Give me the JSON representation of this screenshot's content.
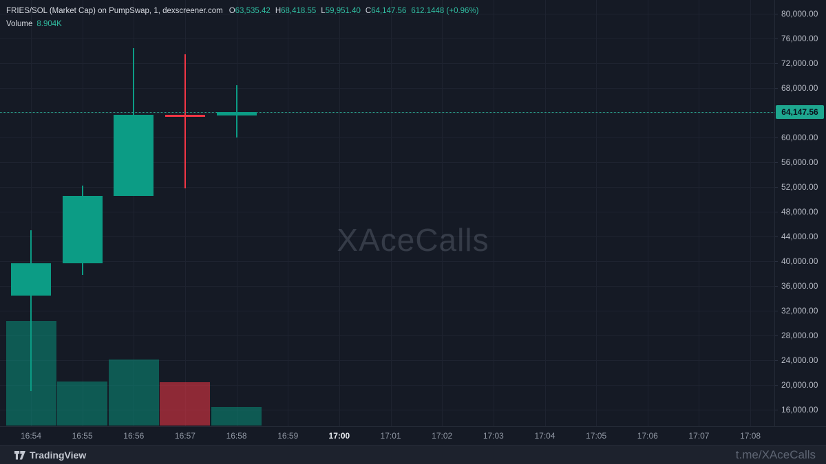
{
  "legend": {
    "title": "FRIES/SOL (Market Cap) on PumpSwap, 1, dexscreener.com",
    "ohlc": [
      {
        "label": "O",
        "value": "63,535.42"
      },
      {
        "label": "H",
        "value": "68,418.55"
      },
      {
        "label": "L",
        "value": "59,951.40"
      },
      {
        "label": "C",
        "value": "64,147.56"
      }
    ],
    "change": "612.1448 (+0.96%)",
    "volume_label": "Volume",
    "volume_value": "8.904K"
  },
  "watermark": "XAceCalls",
  "footer": {
    "logo_text": "TradingView",
    "credit": "t.me/XAceCalls"
  },
  "price_scale": {
    "current_price_label": "64,147.56"
  },
  "colors": {
    "background": "#151a25",
    "grid": "#1e2330",
    "up": "#0c9c85",
    "down": "#f23645",
    "volume_up": "rgba(8,153,129,0.50)",
    "volume_down": "rgba(242,54,69,0.55)",
    "badge_bg": "#1ea78f",
    "accent_teal": "#31bda1"
  },
  "chart_data": {
    "type": "candlestick",
    "title": "FRIES/SOL (Market Cap) on PumpSwap, 1, dexscreener.com",
    "interval_minutes": 1,
    "legend_position": "top-left",
    "grid": true,
    "current_price": 64147.56,
    "last_volume_k": 8.904,
    "ylim": [
      16000,
      80000
    ],
    "y_ticks": [
      {
        "value": 80000,
        "label": "80,000.00"
      },
      {
        "value": 76000,
        "label": "76,000.00"
      },
      {
        "value": 72000,
        "label": "72,000.00"
      },
      {
        "value": 68000,
        "label": "68,000.00"
      },
      {
        "value": 64000,
        "label": ""
      },
      {
        "value": 60000,
        "label": "60,000.00"
      },
      {
        "value": 56000,
        "label": "56,000.00"
      },
      {
        "value": 52000,
        "label": "52,000.00"
      },
      {
        "value": 48000,
        "label": "48,000.00"
      },
      {
        "value": 44000,
        "label": "44,000.00"
      },
      {
        "value": 40000,
        "label": "40,000.00"
      },
      {
        "value": 36000,
        "label": "36,000.00"
      },
      {
        "value": 32000,
        "label": "32,000.00"
      },
      {
        "value": 28000,
        "label": "28,000.00"
      },
      {
        "value": 24000,
        "label": "24,000.00"
      },
      {
        "value": 20000,
        "label": "20,000.00"
      },
      {
        "value": 16000,
        "label": "16,000.00"
      }
    ],
    "x_axis": {
      "labels": [
        "16:54",
        "16:55",
        "16:56",
        "16:57",
        "16:58",
        "16:59",
        "17:00",
        "17:01",
        "17:02",
        "17:03",
        "17:04",
        "17:05",
        "17:06",
        "17:07",
        "17:08"
      ],
      "bold_label": "17:00"
    },
    "series": [
      {
        "time": "16:54",
        "open": 34400,
        "high": 45000,
        "low": 19000,
        "close": 39700,
        "direction": "up",
        "volume_k": 50.1
      },
      {
        "time": "16:55",
        "open": 39700,
        "high": 52200,
        "low": 37800,
        "close": 50600,
        "direction": "up",
        "volume_k": 21.1
      },
      {
        "time": "16:56",
        "open": 50600,
        "high": 74400,
        "low": 50600,
        "close": 63700,
        "direction": "up",
        "volume_k": 31.7
      },
      {
        "time": "16:57",
        "open": 63700,
        "high": 73500,
        "low": 51800,
        "close": 63350,
        "direction": "down",
        "volume_k": 20.8
      },
      {
        "time": "16:58",
        "open": 63535.42,
        "high": 68418.55,
        "low": 59951.4,
        "close": 64147.56,
        "direction": "up",
        "volume_k": 8.904
      }
    ]
  }
}
